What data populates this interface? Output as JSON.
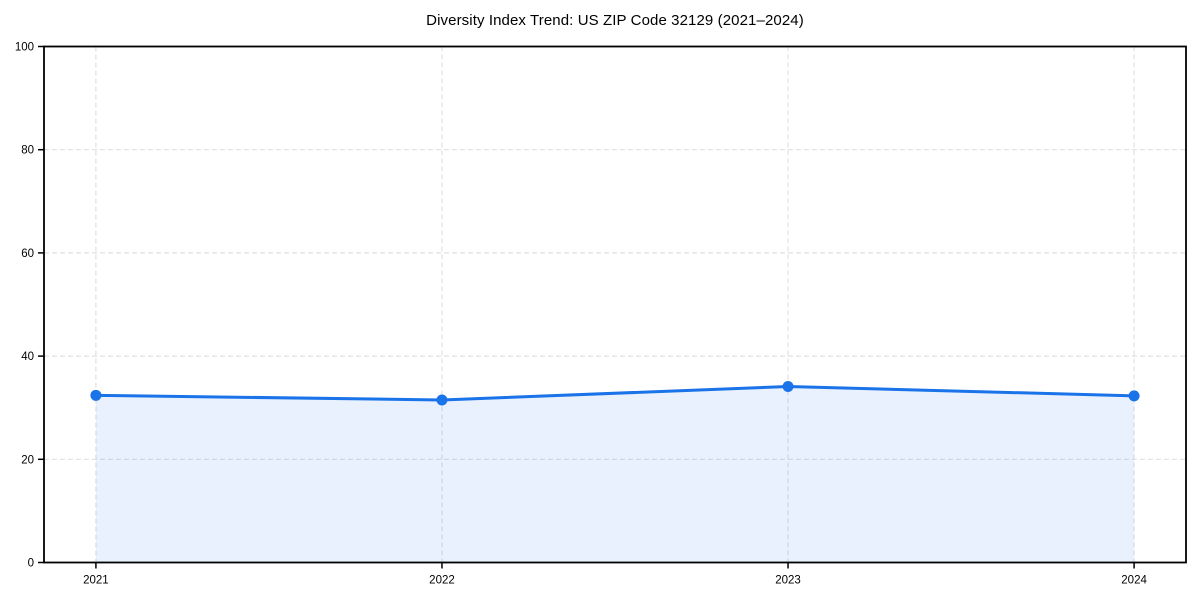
{
  "chart_data": {
    "type": "line",
    "title": "Diversity Index Trend: US ZIP Code 32129 (2021–2024)",
    "x": [
      "2021",
      "2022",
      "2023",
      "2024"
    ],
    "series": [
      {
        "name": "Diversity Index",
        "values": [
          32.4,
          31.5,
          34.1,
          32.3
        ]
      }
    ],
    "xlabel": "",
    "ylabel": "",
    "ylim": [
      0,
      100
    ],
    "yticks": [
      0,
      20,
      40,
      60,
      80,
      100
    ],
    "grid": true,
    "grid_style": "dashed",
    "legend_position": "none",
    "area_fill": true,
    "marker": "circle",
    "colors": {
      "line": "#1a73e8",
      "marker": "#1a73e8",
      "area_fill": "#1a73e8",
      "area_fill_opacity": 0.1,
      "grid": "#e0e0e0",
      "spine": "#000000",
      "tick_label": "#000000",
      "background": "#ffffff"
    }
  }
}
